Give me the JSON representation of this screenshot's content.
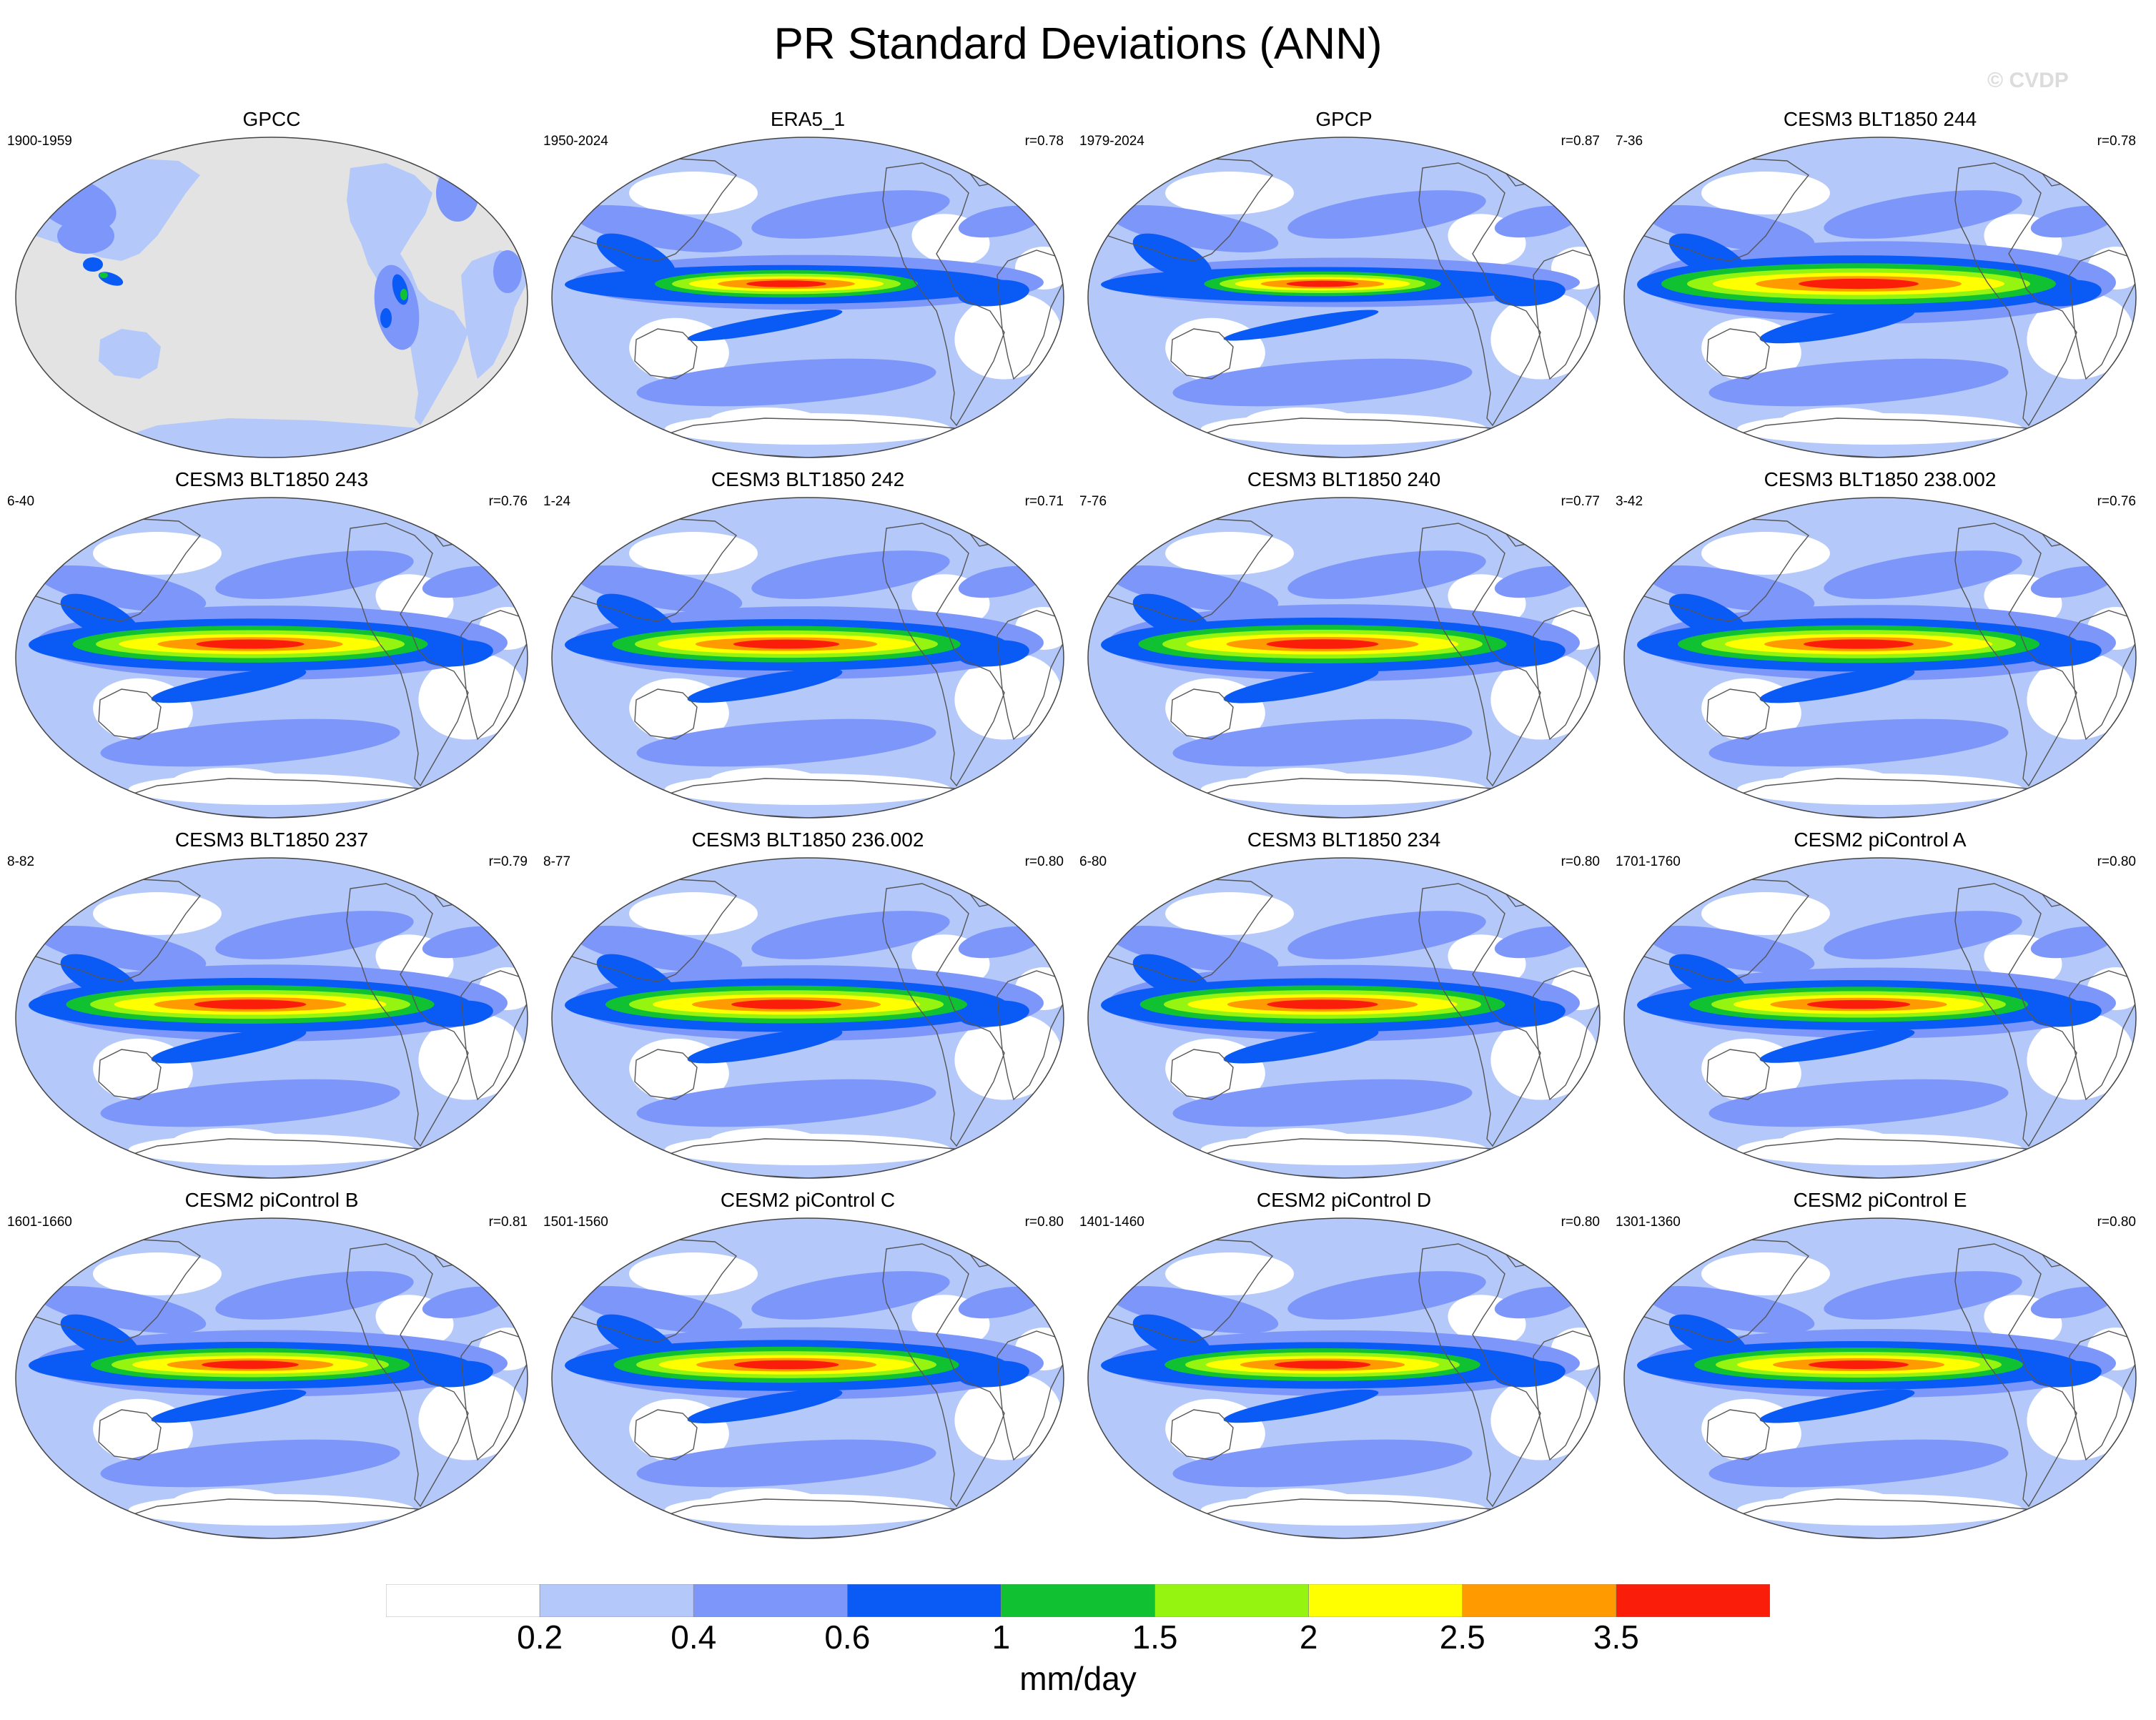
{
  "title": "PR Standard Deviations (ANN)",
  "watermark": "© CVDP",
  "colors": {
    "levels": [
      "#ffffff",
      "#b4c8fa",
      "#7d96fa",
      "#0a5af5",
      "#10c232",
      "#96f510",
      "#ffff00",
      "#ff9b00",
      "#fa1e0a"
    ],
    "land_mask": "#e3e3e3",
    "coast": "#555555"
  },
  "chart_data": {
    "type": "heatmap",
    "projection": "robinson",
    "units": "mm/day",
    "colorbar": {
      "boundaries": [
        "0.2",
        "0.4",
        "0.6",
        "1",
        "1.5",
        "2",
        "2.5",
        "3.5"
      ],
      "label": "mm/day",
      "placement": "bottom"
    },
    "panels": [
      {
        "name": "GPCC",
        "years": "1900-1959",
        "r": "",
        "type": "landonly",
        "amp": 0.9
      },
      {
        "name": "ERA5_1",
        "years": "1950-2024",
        "r": "r=0.78",
        "type": "obs",
        "amp": 0.8
      },
      {
        "name": "GPCP",
        "years": "1979-2024",
        "r": "r=0.87",
        "type": "obs",
        "amp": 0.72
      },
      {
        "name": "CESM3 BLT1850 244",
        "years": "7-36",
        "r": "r=0.78",
        "type": "model",
        "amp": 1.2
      },
      {
        "name": "CESM3 BLT1850 243",
        "years": "6-40",
        "r": "r=0.76",
        "type": "model",
        "amp": 1.08
      },
      {
        "name": "CESM3 BLT1850 242",
        "years": "1-24",
        "r": "r=0.71",
        "type": "model",
        "amp": 1.06
      },
      {
        "name": "CESM3 BLT1850 240",
        "years": "7-76",
        "r": "r=0.77",
        "type": "model",
        "amp": 1.12
      },
      {
        "name": "CESM3 BLT1850 238.002",
        "years": "3-42",
        "r": "r=0.76",
        "type": "model",
        "amp": 1.1
      },
      {
        "name": "CESM3 BLT1850 237",
        "years": "8-82",
        "r": "r=0.79",
        "type": "model",
        "amp": 1.12
      },
      {
        "name": "CESM3 BLT1850 236.002",
        "years": "8-77",
        "r": "r=0.80",
        "type": "model",
        "amp": 1.1
      },
      {
        "name": "CESM3 BLT1850 234",
        "years": "6-80",
        "r": "r=0.80",
        "type": "model",
        "amp": 1.11
      },
      {
        "name": "CESM2 piControl A",
        "years": "1701-1760",
        "r": "r=0.80",
        "type": "model",
        "amp": 1.03
      },
      {
        "name": "CESM2 piControl B",
        "years": "1601-1660",
        "r": "r=0.81",
        "type": "model",
        "amp": 0.97
      },
      {
        "name": "CESM2 piControl C",
        "years": "1501-1560",
        "r": "r=0.80",
        "type": "model",
        "amp": 1.05
      },
      {
        "name": "CESM2 piControl D",
        "years": "1401-1460",
        "r": "r=0.80",
        "type": "model",
        "amp": 0.96
      },
      {
        "name": "CESM2 piControl E",
        "years": "1301-1360",
        "r": "r=0.80",
        "type": "model",
        "amp": 1.0
      }
    ]
  }
}
